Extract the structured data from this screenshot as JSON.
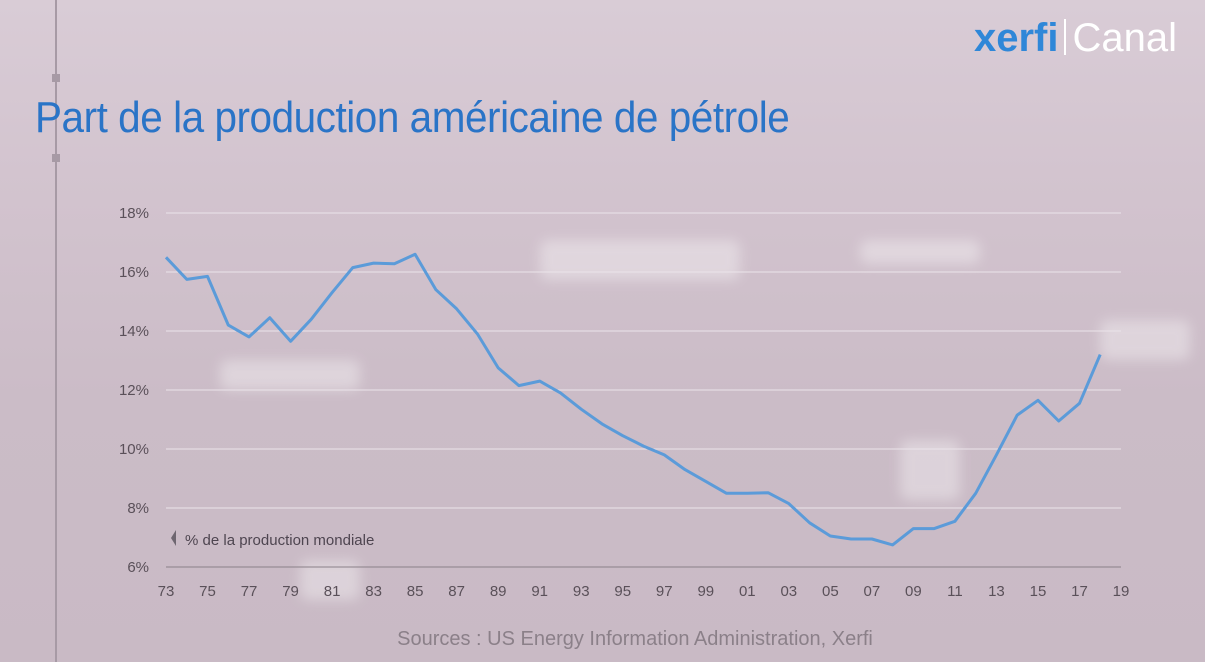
{
  "brand": {
    "name_bold": "xerfi",
    "name_light": "Canal"
  },
  "title": "Part de la production américaine de pétrole",
  "source": "Sources : US Energy Information Administration, Xerfi",
  "colors": {
    "line": "#5b9bd9",
    "title": "#2a74c7",
    "brand": "#2f87d8",
    "grid": "#ebe4ea"
  },
  "chart_data": {
    "type": "line",
    "title": "Part de la production américaine de pétrole",
    "ylabel": "% de la production mondiale",
    "ylim": [
      6,
      18
    ],
    "y_ticks": [
      "18%",
      "16%",
      "14%",
      "12%",
      "10%",
      "8%",
      "6%"
    ],
    "y_tick_values": [
      18,
      16,
      14,
      12,
      10,
      8,
      6
    ],
    "x_ticks": [
      "73",
      "75",
      "77",
      "79",
      "81",
      "83",
      "85",
      "87",
      "89",
      "91",
      "93",
      "95",
      "97",
      "99",
      "01",
      "03",
      "05",
      "07",
      "09",
      "11",
      "13",
      "15",
      "17",
      "19"
    ],
    "x_tick_values": [
      1973,
      1975,
      1977,
      1979,
      1981,
      1983,
      1985,
      1987,
      1989,
      1991,
      1993,
      1995,
      1997,
      1999,
      2001,
      2003,
      2005,
      2007,
      2009,
      2011,
      2013,
      2015,
      2017,
      2019
    ],
    "grid": true,
    "series": [
      {
        "x": [
          1973,
          1974,
          1975,
          1976,
          1977,
          1978,
          1979,
          1980,
          1981,
          1982,
          1983,
          1984,
          1985,
          1986,
          1987,
          1988,
          1989,
          1990,
          1991,
          1992,
          1993,
          1994,
          1995,
          1996,
          1997,
          1998,
          1999,
          2000,
          2001,
          2002,
          2003,
          2004,
          2005,
          2006,
          2007,
          2008,
          2009,
          2010,
          2011,
          2012,
          2013,
          2014,
          2015,
          2016,
          2017,
          2018
        ],
        "y": [
          16.5,
          15.75,
          15.85,
          14.2,
          13.8,
          14.45,
          13.65,
          14.4,
          15.3,
          16.15,
          16.3,
          16.28,
          16.6,
          15.4,
          14.75,
          13.9,
          12.75,
          12.15,
          12.3,
          11.9,
          11.35,
          10.85,
          10.45,
          10.1,
          9.8,
          9.3,
          8.9,
          8.5,
          8.5,
          8.52,
          8.15,
          7.5,
          7.05,
          6.95,
          6.95,
          6.75,
          7.3,
          7.3,
          7.55,
          8.5,
          9.8,
          11.15,
          11.65,
          10.95,
          11.55,
          13.2
        ]
      }
    ]
  }
}
